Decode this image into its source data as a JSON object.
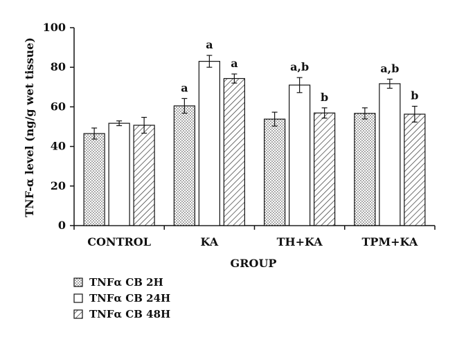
{
  "chart_data": {
    "type": "bar",
    "categories": [
      "CONTROL",
      "KA",
      "TH+KA",
      "TPM+KA"
    ],
    "series": [
      {
        "name": "TNFα CB 2H",
        "pattern": "dots",
        "values": [
          46.5,
          60.5,
          53.8,
          56.7
        ],
        "errors": [
          2.8,
          3.7,
          3.5,
          2.8
        ],
        "annotations": [
          "",
          "a",
          "",
          ""
        ]
      },
      {
        "name": "TNFα CB 24H",
        "pattern": "open",
        "values": [
          51.7,
          83.0,
          71.0,
          71.7
        ],
        "errors": [
          1.2,
          3.0,
          3.8,
          2.3
        ],
        "annotations": [
          "",
          "a",
          "a,b",
          "a,b"
        ]
      },
      {
        "name": "TNFα CB 48H",
        "pattern": "hatch",
        "values": [
          50.7,
          74.3,
          56.9,
          56.3
        ],
        "errors": [
          4.0,
          2.3,
          2.6,
          4.0
        ],
        "annotations": [
          "",
          "a",
          "b",
          "b"
        ]
      }
    ],
    "xlabel": "GROUP",
    "ylabel": "TNF-α level (ng/g wet tissue)",
    "ylim": [
      0,
      100
    ],
    "yticks": [
      0,
      20,
      40,
      60,
      80,
      100
    ],
    "grid": false,
    "legend_position": "bottom-left"
  }
}
